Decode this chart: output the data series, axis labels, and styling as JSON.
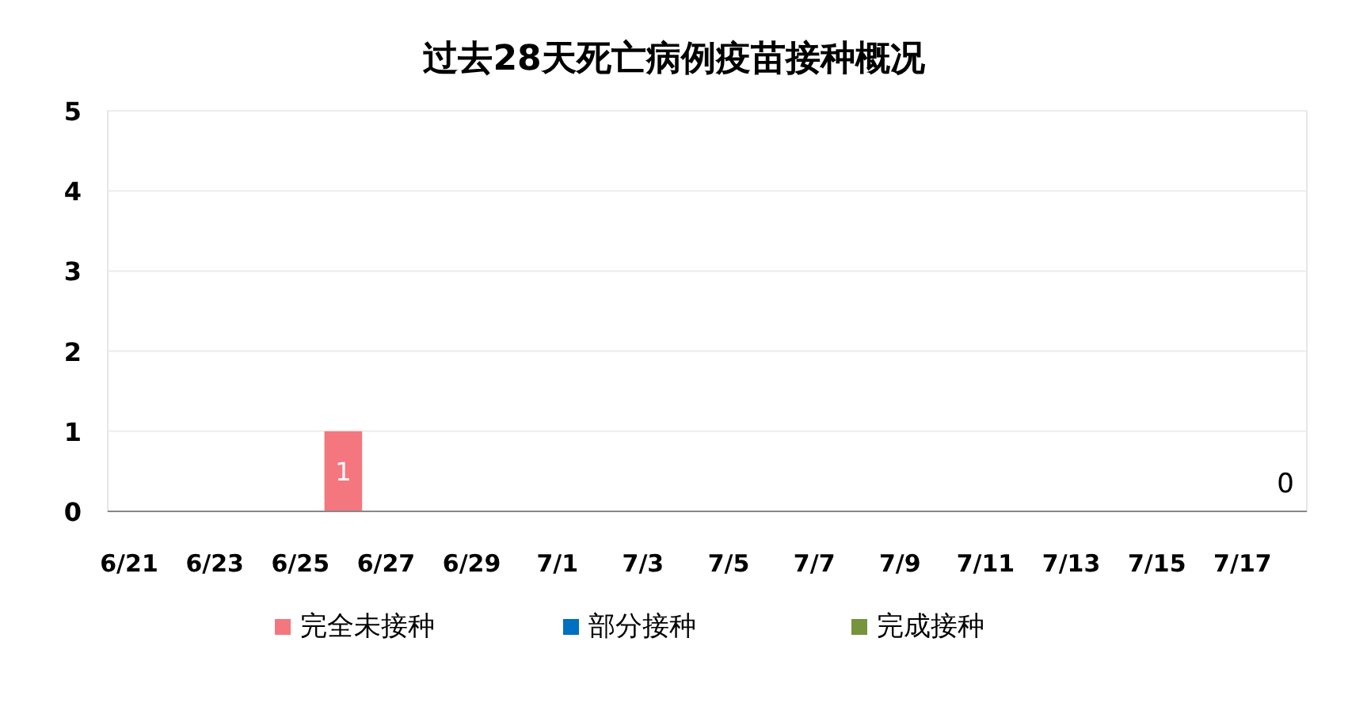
{
  "chart_data": {
    "type": "bar",
    "title": "过去28天死亡病例疫苗接种概况",
    "stacked": true,
    "categories": [
      "6/21",
      null,
      "6/23",
      null,
      "6/25",
      null,
      "6/27",
      null,
      "6/29",
      null,
      "7/1",
      null,
      "7/3",
      null,
      "7/5",
      null,
      "7/7",
      null,
      "7/9",
      null,
      "7/11",
      null,
      "7/13",
      null,
      "7/15",
      null,
      "7/17",
      null
    ],
    "series": [
      {
        "name": "完全未接种",
        "color": "#f4777f",
        "values": [
          0,
          0,
          0,
          0,
          0,
          1,
          0,
          0,
          0,
          0,
          0,
          0,
          0,
          0,
          0,
          0,
          0,
          0,
          0,
          0,
          0,
          0,
          0,
          0,
          0,
          0,
          0,
          0
        ],
        "value_labels": [
          null,
          null,
          null,
          null,
          null,
          "1",
          null,
          null,
          null,
          null,
          null,
          null,
          null,
          null,
          null,
          null,
          null,
          null,
          null,
          null,
          null,
          null,
          null,
          null,
          null,
          null,
          null,
          null
        ]
      },
      {
        "name": "部分接种",
        "color": "#0070c0",
        "values": [
          0,
          0,
          0,
          0,
          0,
          0,
          0,
          0,
          0,
          0,
          0,
          0,
          0,
          0,
          0,
          0,
          0,
          0,
          0,
          0,
          0,
          0,
          0,
          0,
          0,
          0,
          0,
          0
        ]
      },
      {
        "name": "完成接种",
        "color": "#77933c",
        "values": [
          0,
          0,
          0,
          0,
          0,
          0,
          0,
          0,
          0,
          0,
          0,
          0,
          0,
          0,
          0,
          0,
          0,
          0,
          0,
          0,
          0,
          0,
          0,
          0,
          0,
          0,
          0,
          0
        ]
      }
    ],
    "totals": [
      null,
      null,
      null,
      null,
      null,
      null,
      null,
      null,
      null,
      null,
      null,
      null,
      null,
      null,
      null,
      null,
      null,
      null,
      null,
      null,
      null,
      null,
      null,
      null,
      null,
      null,
      null,
      "0"
    ],
    "ylim": [
      0,
      5
    ],
    "yticks": [
      0,
      1,
      2,
      3,
      4,
      5
    ],
    "grid": "y",
    "legend": "bottom"
  }
}
